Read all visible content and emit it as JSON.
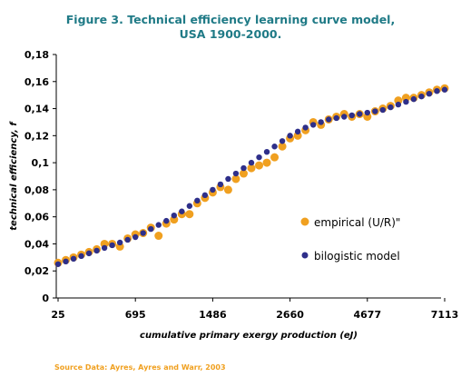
{
  "title_line1": "Figure 3. Technical efficiency learning curve model,",
  "title_line2": "USA 1900-2000.",
  "source": "Source Data: Ayres, Ayres and Warr, 2003",
  "colors": {
    "empirical": "#f0a020",
    "model": "#2e2f8a",
    "title": "#1f7a86"
  },
  "chart_data": {
    "type": "scatter",
    "xlabel": "cumulative primary exergy production (eJ)",
    "ylabel": "technical efficiency, f",
    "x_ticks": [
      "25",
      "695",
      "1486",
      "2660",
      "4677",
      "7113"
    ],
    "y_ticks": [
      "0",
      "0,02",
      "0,04",
      "0,06",
      "0,08",
      "0,1",
      "0,12",
      "0,14",
      "0,16",
      "0,18"
    ],
    "ylim": [
      0,
      0.18
    ],
    "legend": {
      "position": "right",
      "entries": [
        "empirical (U/R)\"",
        "bilogistic model"
      ]
    },
    "series": [
      {
        "name": "empirical (U/R)\"",
        "marker": "orange-dot",
        "x_index": [
          0,
          0.1,
          0.2,
          0.3,
          0.4,
          0.5,
          0.6,
          0.7,
          0.8,
          0.9,
          1.0,
          1.1,
          1.2,
          1.3,
          1.4,
          1.5,
          1.6,
          1.7,
          1.8,
          1.9,
          2.0,
          2.1,
          2.2,
          2.3,
          2.4,
          2.5,
          2.6,
          2.7,
          2.8,
          2.9,
          3.0,
          3.1,
          3.2,
          3.3,
          3.4,
          3.5,
          3.6,
          3.7,
          3.8,
          3.9,
          4.0,
          4.1,
          4.2,
          4.3,
          4.4,
          4.5,
          4.6,
          4.7,
          4.8,
          4.9,
          5.0
        ],
        "values": [
          0.026,
          0.028,
          0.03,
          0.032,
          0.034,
          0.036,
          0.04,
          0.04,
          0.038,
          0.044,
          0.047,
          0.048,
          0.052,
          0.046,
          0.055,
          0.058,
          0.062,
          0.062,
          0.07,
          0.074,
          0.078,
          0.082,
          0.08,
          0.088,
          0.092,
          0.096,
          0.098,
          0.1,
          0.104,
          0.112,
          0.118,
          0.12,
          0.124,
          0.13,
          0.128,
          0.132,
          0.134,
          0.136,
          0.134,
          0.136,
          0.134,
          0.138,
          0.14,
          0.142,
          0.146,
          0.148,
          0.148,
          0.15,
          0.152,
          0.154,
          0.155
        ]
      },
      {
        "name": "bilogistic model",
        "marker": "navy-dot",
        "x_index": [
          0,
          0.1,
          0.2,
          0.3,
          0.4,
          0.5,
          0.6,
          0.7,
          0.8,
          0.9,
          1.0,
          1.1,
          1.2,
          1.3,
          1.4,
          1.5,
          1.6,
          1.7,
          1.8,
          1.9,
          2.0,
          2.1,
          2.2,
          2.3,
          2.4,
          2.5,
          2.6,
          2.7,
          2.8,
          2.9,
          3.0,
          3.1,
          3.2,
          3.3,
          3.4,
          3.5,
          3.6,
          3.7,
          3.8,
          3.9,
          4.0,
          4.1,
          4.2,
          4.3,
          4.4,
          4.5,
          4.6,
          4.7,
          4.8,
          4.9,
          5.0
        ],
        "values": [
          0.025,
          0.027,
          0.029,
          0.031,
          0.033,
          0.035,
          0.037,
          0.039,
          0.041,
          0.043,
          0.045,
          0.048,
          0.051,
          0.054,
          0.057,
          0.061,
          0.064,
          0.068,
          0.072,
          0.076,
          0.08,
          0.084,
          0.088,
          0.092,
          0.096,
          0.1,
          0.104,
          0.108,
          0.112,
          0.116,
          0.12,
          0.123,
          0.126,
          0.128,
          0.13,
          0.132,
          0.133,
          0.134,
          0.135,
          0.136,
          0.137,
          0.138,
          0.139,
          0.141,
          0.143,
          0.145,
          0.147,
          0.149,
          0.151,
          0.153,
          0.154
        ]
      }
    ]
  }
}
